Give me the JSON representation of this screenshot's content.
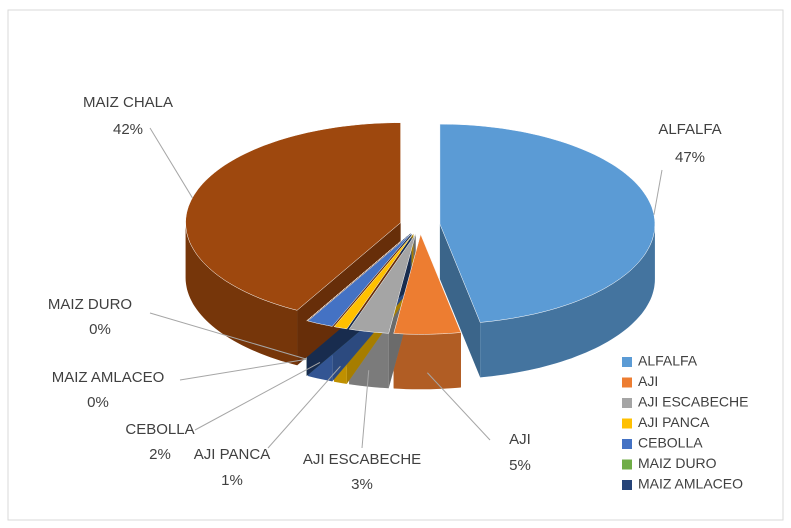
{
  "chart_data": {
    "type": "pie3d",
    "categories": [
      "ALFALFA",
      "AJI",
      "AJI ESCABECHE",
      "AJI PANCA",
      "CEBOLLA",
      "MAIZ DURO",
      "MAIZ AMLACEO",
      "MAIZ CHALA"
    ],
    "values": [
      47,
      5,
      3,
      1,
      2,
      0,
      0,
      42
    ],
    "value_labels": [
      "47%",
      "5%",
      "3%",
      "1%",
      "2%",
      "0%",
      "0%",
      "42%"
    ],
    "colors": [
      "#5b9bd5",
      "#ed7d31",
      "#a5a5a5",
      "#ffc000",
      "#4472c4",
      "#70ad47",
      "#264478",
      "#9e480e"
    ],
    "legend": "bottom-right"
  }
}
